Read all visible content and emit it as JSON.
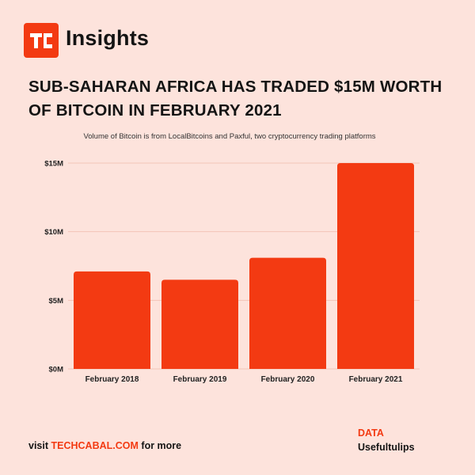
{
  "brand": {
    "logo_text": "TC",
    "name": "Insights",
    "accent_color": "#f33a12"
  },
  "header": {
    "title": "SUB-SAHARAN AFRICA HAS TRADED $15M WORTH OF BITCOIN IN FEBRUARY 2021",
    "subtitle": "Volume of Bitcoin is from LocalBitcoins and Paxful, two cryptocurrency trading platforms"
  },
  "chart_data": {
    "type": "bar",
    "title": "SUB-SAHARAN AFRICA HAS TRADED $15M WORTH OF BITCOIN IN FEBRUARY 2021",
    "subtitle": "Volume of Bitcoin is from LocalBitcoins and Paxful, two cryptocurrency trading platforms",
    "categories": [
      "February 2018",
      "February 2019",
      "February 2020",
      "February 2021"
    ],
    "values": [
      7.1,
      6.5,
      8.1,
      15.0
    ],
    "unit": "M USD",
    "ylim": [
      0,
      15
    ],
    "yticks": [
      0,
      5,
      10,
      15
    ],
    "ytick_labels": [
      "$0M",
      "$5M",
      "$10M",
      "$15M"
    ],
    "xlabel": "",
    "ylabel": "",
    "grid": true,
    "bar_color": "#f33a12"
  },
  "footer": {
    "visit_prefix": "visit",
    "visit_link": "TECHCABAL.COM",
    "visit_suffix": "for more",
    "source_label": "DATA",
    "source_value": "Usefultulips"
  }
}
